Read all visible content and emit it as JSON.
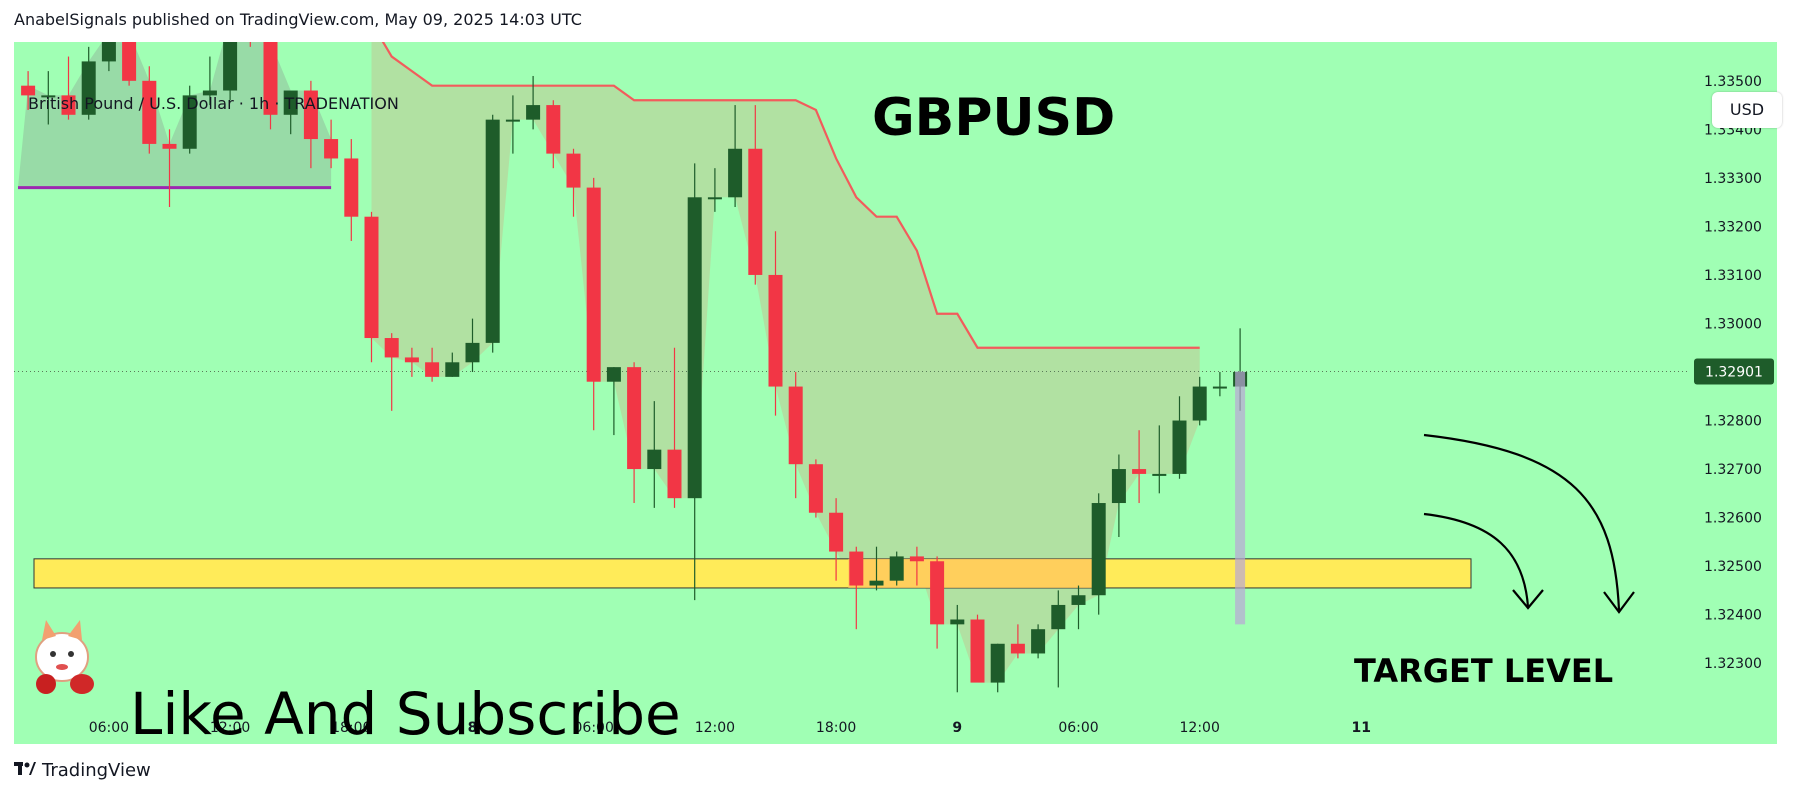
{
  "header": {
    "published": "AnabelSignals published on TradingView.com, May 09, 2025 14:03 UTC"
  },
  "chart": {
    "symbol_label": "British Pound / U.S. Dollar · 1h · TRADENATION",
    "title": "GBPUSD",
    "currency_button": "USD",
    "watermark_text": "Like And Subscribe",
    "target_text": "TARGET LEVEL"
  },
  "footer": {
    "brand": "TradingView"
  },
  "colors": {
    "background": "#a0ffb4",
    "bull": "#1e5c2a",
    "bear": "#f23645",
    "resistance_line": "#f25c5c",
    "target_zone": "#ffeb59",
    "support_line": "#9c27b0",
    "last_price_tag": "#1e5c2a"
  },
  "chart_data": {
    "type": "candlestick",
    "timeframe": "1h",
    "y_tick_labels": [
      "1.33500",
      "1.33400",
      "1.33300",
      "1.33200",
      "1.33100",
      "1.33000",
      "1.32800",
      "1.32700",
      "1.32600",
      "1.32500",
      "1.32400",
      "1.32300"
    ],
    "ylim": [
      1.3222,
      1.3358
    ],
    "x_tick_labels": [
      {
        "label": "06:00",
        "index": 4
      },
      {
        "label": "12:00",
        "index": 10
      },
      {
        "label": "18:00",
        "index": 16
      },
      {
        "label": "8",
        "index": 22
      },
      {
        "label": "06:00",
        "index": 28
      },
      {
        "label": "12:00",
        "index": 34
      },
      {
        "label": "18:00",
        "index": 40
      },
      {
        "label": "9",
        "index": 46
      },
      {
        "label": "06:00",
        "index": 52
      },
      {
        "label": "12:00",
        "index": 58
      },
      {
        "label": "11",
        "index": 66
      }
    ],
    "last_price": "1.32901",
    "target_zone": [
      1.32455,
      1.32515
    ],
    "resistance_line": [
      {
        "i": 17,
        "v": 1.3362
      },
      {
        "i": 18,
        "v": 1.3355
      },
      {
        "i": 19,
        "v": 1.3352
      },
      {
        "i": 20,
        "v": 1.3349
      },
      {
        "i": 29,
        "v": 1.3349
      },
      {
        "i": 30,
        "v": 1.3346
      },
      {
        "i": 38,
        "v": 1.3346
      },
      {
        "i": 39,
        "v": 1.3344
      },
      {
        "i": 40,
        "v": 1.3334
      },
      {
        "i": 41,
        "v": 1.3326
      },
      {
        "i": 42,
        "v": 1.3322
      },
      {
        "i": 43,
        "v": 1.3322
      },
      {
        "i": 44,
        "v": 1.3315
      },
      {
        "i": 45,
        "v": 1.3302
      },
      {
        "i": 46,
        "v": 1.3302
      },
      {
        "i": 47,
        "v": 1.3295
      },
      {
        "i": 58,
        "v": 1.3295
      }
    ],
    "support_line": [
      {
        "i": -0.5,
        "v": 1.3328
      },
      {
        "i": 15,
        "v": 1.3328
      }
    ],
    "candles": [
      {
        "o": 1.3349,
        "h": 1.3352,
        "l": 1.3344,
        "c": 1.3347
      },
      {
        "o": 1.3347,
        "h": 1.3352,
        "l": 1.3341,
        "c": 1.3347
      },
      {
        "o": 1.3347,
        "h": 1.3355,
        "l": 1.3342,
        "c": 1.3343
      },
      {
        "o": 1.3343,
        "h": 1.3357,
        "l": 1.3342,
        "c": 1.3354
      },
      {
        "o": 1.3354,
        "h": 1.3362,
        "l": 1.3352,
        "c": 1.336
      },
      {
        "o": 1.336,
        "h": 1.3366,
        "l": 1.3349,
        "c": 1.335
      },
      {
        "o": 1.335,
        "h": 1.3353,
        "l": 1.3335,
        "c": 1.3337
      },
      {
        "o": 1.3337,
        "h": 1.334,
        "l": 1.3324,
        "c": 1.3336
      },
      {
        "o": 1.3336,
        "h": 1.3349,
        "l": 1.3335,
        "c": 1.3347
      },
      {
        "o": 1.3347,
        "h": 1.3355,
        "l": 1.3345,
        "c": 1.3348
      },
      {
        "o": 1.3348,
        "h": 1.3365,
        "l": 1.3346,
        "c": 1.3363
      },
      {
        "o": 1.3363,
        "h": 1.3366,
        "l": 1.3357,
        "c": 1.3358
      },
      {
        "o": 1.3358,
        "h": 1.3362,
        "l": 1.334,
        "c": 1.3343
      },
      {
        "o": 1.3343,
        "h": 1.3347,
        "l": 1.3339,
        "c": 1.3348
      },
      {
        "o": 1.3348,
        "h": 1.335,
        "l": 1.3332,
        "c": 1.3338
      },
      {
        "o": 1.3338,
        "h": 1.3342,
        "l": 1.3332,
        "c": 1.3334
      },
      {
        "o": 1.3334,
        "h": 1.3338,
        "l": 1.3317,
        "c": 1.3322
      },
      {
        "o": 1.3322,
        "h": 1.3323,
        "l": 1.3292,
        "c": 1.3297
      },
      {
        "o": 1.3297,
        "h": 1.3298,
        "l": 1.3282,
        "c": 1.3293
      },
      {
        "o": 1.3293,
        "h": 1.3295,
        "l": 1.3289,
        "c": 1.3292
      },
      {
        "o": 1.3292,
        "h": 1.3295,
        "l": 1.3288,
        "c": 1.3289
      },
      {
        "o": 1.3289,
        "h": 1.3294,
        "l": 1.3289,
        "c": 1.3292
      },
      {
        "o": 1.3292,
        "h": 1.3301,
        "l": 1.329,
        "c": 1.3296
      },
      {
        "o": 1.3296,
        "h": 1.3343,
        "l": 1.3294,
        "c": 1.3342
      },
      {
        "o": 1.3342,
        "h": 1.3347,
        "l": 1.3335,
        "c": 1.3342
      },
      {
        "o": 1.3342,
        "h": 1.3351,
        "l": 1.334,
        "c": 1.3345
      },
      {
        "o": 1.3345,
        "h": 1.3346,
        "l": 1.3332,
        "c": 1.3335
      },
      {
        "o": 1.3335,
        "h": 1.3336,
        "l": 1.3322,
        "c": 1.3328
      },
      {
        "o": 1.3328,
        "h": 1.333,
        "l": 1.3278,
        "c": 1.3288
      },
      {
        "o": 1.3288,
        "h": 1.3291,
        "l": 1.3277,
        "c": 1.3291
      },
      {
        "o": 1.3291,
        "h": 1.3292,
        "l": 1.3263,
        "c": 1.327
      },
      {
        "o": 1.327,
        "h": 1.3284,
        "l": 1.3262,
        "c": 1.3274
      },
      {
        "o": 1.3274,
        "h": 1.3295,
        "l": 1.3262,
        "c": 1.3264
      },
      {
        "o": 1.3264,
        "h": 1.3333,
        "l": 1.3243,
        "c": 1.3326
      },
      {
        "o": 1.3326,
        "h": 1.3332,
        "l": 1.3323,
        "c": 1.3326
      },
      {
        "o": 1.3326,
        "h": 1.3345,
        "l": 1.3324,
        "c": 1.3336
      },
      {
        "o": 1.3336,
        "h": 1.3345,
        "l": 1.3308,
        "c": 1.331
      },
      {
        "o": 1.331,
        "h": 1.3319,
        "l": 1.3281,
        "c": 1.3287
      },
      {
        "o": 1.3287,
        "h": 1.329,
        "l": 1.3264,
        "c": 1.3271
      },
      {
        "o": 1.3271,
        "h": 1.3272,
        "l": 1.326,
        "c": 1.3261
      },
      {
        "o": 1.3261,
        "h": 1.3264,
        "l": 1.3247,
        "c": 1.3253
      },
      {
        "o": 1.3253,
        "h": 1.3254,
        "l": 1.3237,
        "c": 1.3246
      },
      {
        "o": 1.3246,
        "h": 1.3254,
        "l": 1.3245,
        "c": 1.3247
      },
      {
        "o": 1.3247,
        "h": 1.3253,
        "l": 1.3246,
        "c": 1.3252
      },
      {
        "o": 1.3252,
        "h": 1.3254,
        "l": 1.3246,
        "c": 1.3251
      },
      {
        "o": 1.3251,
        "h": 1.3252,
        "l": 1.3233,
        "c": 1.3238
      },
      {
        "o": 1.3238,
        "h": 1.3242,
        "l": 1.3224,
        "c": 1.3239
      },
      {
        "o": 1.3239,
        "h": 1.324,
        "l": 1.3227,
        "c": 1.3226
      },
      {
        "o": 1.3226,
        "h": 1.3234,
        "l": 1.3224,
        "c": 1.3234
      },
      {
        "o": 1.3234,
        "h": 1.3238,
        "l": 1.3231,
        "c": 1.3232
      },
      {
        "o": 1.3232,
        "h": 1.3238,
        "l": 1.3231,
        "c": 1.3237
      },
      {
        "o": 1.3237,
        "h": 1.3245,
        "l": 1.3225,
        "c": 1.3242
      },
      {
        "o": 1.3242,
        "h": 1.3246,
        "l": 1.3237,
        "c": 1.3244
      },
      {
        "o": 1.3244,
        "h": 1.3265,
        "l": 1.324,
        "c": 1.3263
      },
      {
        "o": 1.3263,
        "h": 1.3273,
        "l": 1.3256,
        "c": 1.327
      },
      {
        "o": 1.327,
        "h": 1.3278,
        "l": 1.3263,
        "c": 1.3269
      },
      {
        "o": 1.3269,
        "h": 1.3279,
        "l": 1.3265,
        "c": 1.3269
      },
      {
        "o": 1.3269,
        "h": 1.3285,
        "l": 1.3268,
        "c": 1.328
      },
      {
        "o": 1.328,
        "h": 1.3289,
        "l": 1.3279,
        "c": 1.3287
      },
      {
        "o": 1.3287,
        "h": 1.329,
        "l": 1.3285,
        "c": 1.3287
      },
      {
        "o": 1.3287,
        "h": 1.3299,
        "l": 1.3282,
        "c": 1.329
      }
    ]
  }
}
